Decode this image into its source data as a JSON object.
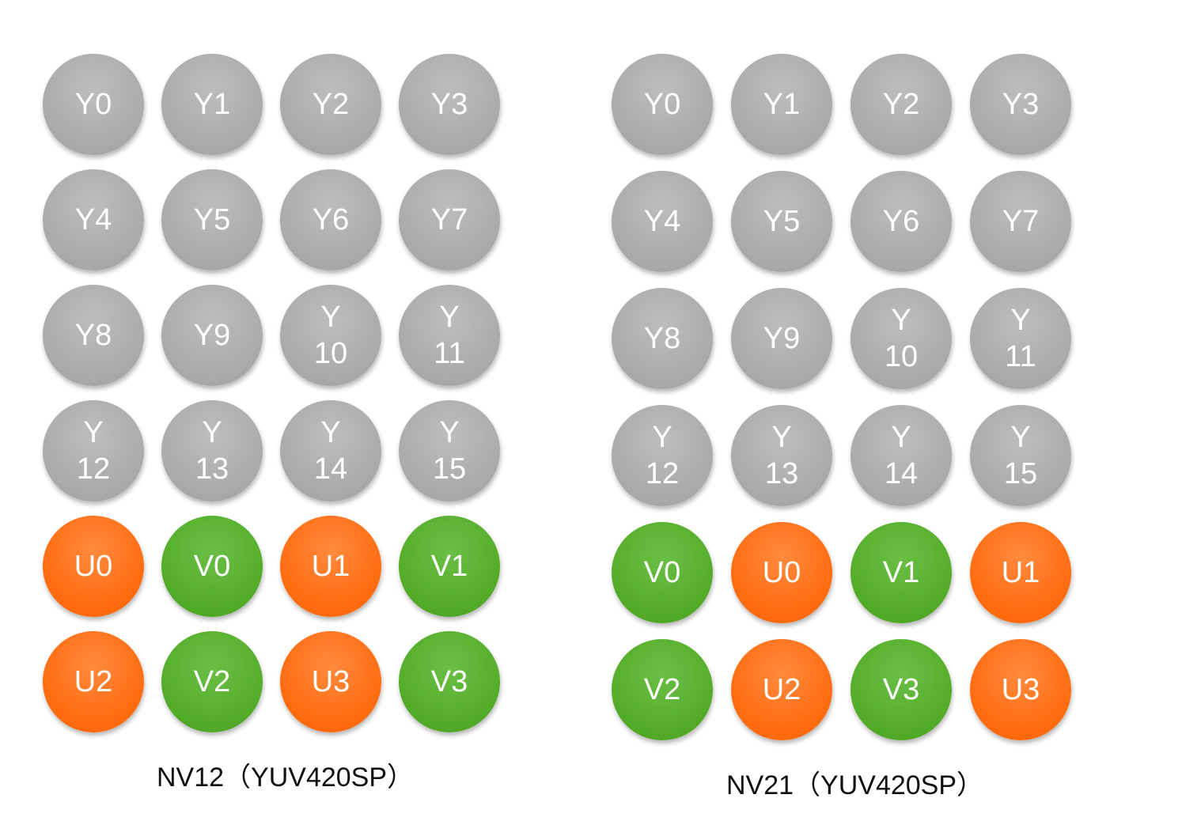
{
  "colors": {
    "y": "#a9a9a9",
    "u": "#ff6a0e",
    "v": "#52ab27",
    "text": "#ffffff"
  },
  "panels": [
    {
      "caption": "NV12（YUV420SP）",
      "rows": [
        [
          {
            "t": "y",
            "l": [
              "Y0"
            ]
          },
          {
            "t": "y",
            "l": [
              "Y1"
            ]
          },
          {
            "t": "y",
            "l": [
              "Y2"
            ]
          },
          {
            "t": "y",
            "l": [
              "Y3"
            ]
          }
        ],
        [
          {
            "t": "y",
            "l": [
              "Y4"
            ]
          },
          {
            "t": "y",
            "l": [
              "Y5"
            ]
          },
          {
            "t": "y",
            "l": [
              "Y6"
            ]
          },
          {
            "t": "y",
            "l": [
              "Y7"
            ]
          }
        ],
        [
          {
            "t": "y",
            "l": [
              "Y8"
            ]
          },
          {
            "t": "y",
            "l": [
              "Y9"
            ]
          },
          {
            "t": "y",
            "l": [
              "Y",
              "10"
            ]
          },
          {
            "t": "y",
            "l": [
              "Y",
              "11"
            ]
          }
        ],
        [
          {
            "t": "y",
            "l": [
              "Y",
              "12"
            ]
          },
          {
            "t": "y",
            "l": [
              "Y",
              "13"
            ]
          },
          {
            "t": "y",
            "l": [
              "Y",
              "14"
            ]
          },
          {
            "t": "y",
            "l": [
              "Y",
              "15"
            ]
          }
        ],
        [
          {
            "t": "u",
            "l": [
              "U0"
            ]
          },
          {
            "t": "v",
            "l": [
              "V0"
            ]
          },
          {
            "t": "u",
            "l": [
              "U1"
            ]
          },
          {
            "t": "v",
            "l": [
              "V1"
            ]
          }
        ],
        [
          {
            "t": "u",
            "l": [
              "U2"
            ]
          },
          {
            "t": "v",
            "l": [
              "V2"
            ]
          },
          {
            "t": "u",
            "l": [
              "U3"
            ]
          },
          {
            "t": "v",
            "l": [
              "V3"
            ]
          }
        ]
      ]
    },
    {
      "caption": "NV21（YUV420SP）",
      "rows": [
        [
          {
            "t": "y",
            "l": [
              "Y0"
            ]
          },
          {
            "t": "y",
            "l": [
              "Y1"
            ]
          },
          {
            "t": "y",
            "l": [
              "Y2"
            ]
          },
          {
            "t": "y",
            "l": [
              "Y3"
            ]
          }
        ],
        [
          {
            "t": "y",
            "l": [
              "Y4"
            ]
          },
          {
            "t": "y",
            "l": [
              "Y5"
            ]
          },
          {
            "t": "y",
            "l": [
              "Y6"
            ]
          },
          {
            "t": "y",
            "l": [
              "Y7"
            ]
          }
        ],
        [
          {
            "t": "y",
            "l": [
              "Y8"
            ]
          },
          {
            "t": "y",
            "l": [
              "Y9"
            ]
          },
          {
            "t": "y",
            "l": [
              "Y",
              "10"
            ]
          },
          {
            "t": "y",
            "l": [
              "Y",
              "11"
            ]
          }
        ],
        [
          {
            "t": "y",
            "l": [
              "Y",
              "12"
            ]
          },
          {
            "t": "y",
            "l": [
              "Y",
              "13"
            ]
          },
          {
            "t": "y",
            "l": [
              "Y",
              "14"
            ]
          },
          {
            "t": "y",
            "l": [
              "Y",
              "15"
            ]
          }
        ],
        [
          {
            "t": "v",
            "l": [
              "V0"
            ]
          },
          {
            "t": "u",
            "l": [
              "U0"
            ]
          },
          {
            "t": "v",
            "l": [
              "V1"
            ]
          },
          {
            "t": "u",
            "l": [
              "U1"
            ]
          }
        ],
        [
          {
            "t": "v",
            "l": [
              "V2"
            ]
          },
          {
            "t": "u",
            "l": [
              "U2"
            ]
          },
          {
            "t": "v",
            "l": [
              "V3"
            ]
          },
          {
            "t": "u",
            "l": [
              "U3"
            ]
          }
        ]
      ]
    }
  ]
}
